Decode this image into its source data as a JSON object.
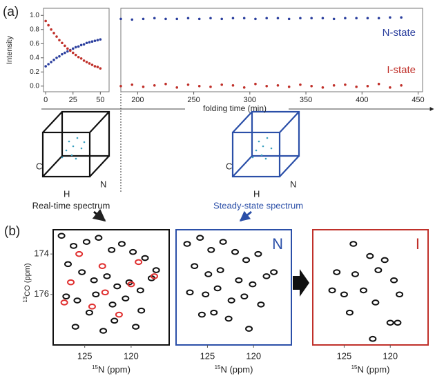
{
  "panel_a": "(a)",
  "panel_b": "(b)",
  "cube_axes": [
    "C",
    "H",
    "N"
  ],
  "captions": [
    "Real-time spectrum",
    "Steady-state spectrum"
  ],
  "spec_ylabel": {
    "sup": "13",
    "text": "CO (ppm)"
  },
  "chart_data": [
    {
      "type": "scatter",
      "ylabel": "Intensity",
      "x": [
        0,
        2.5,
        5,
        7.5,
        10,
        12.5,
        15,
        17.5,
        20,
        22.5,
        25,
        27.5,
        30,
        32.5,
        35,
        37.5,
        40,
        42.5,
        45,
        47.5,
        50
      ],
      "series": [
        {
          "color": "#2b3f9e",
          "values": [
            0.28,
            0.31,
            0.34,
            0.37,
            0.4,
            0.42,
            0.45,
            0.47,
            0.49,
            0.51,
            0.53,
            0.55,
            0.56,
            0.58,
            0.59,
            0.61,
            0.62,
            0.63,
            0.64,
            0.65,
            0.66
          ]
        },
        {
          "color": "#c0302a",
          "values": [
            0.92,
            0.86,
            0.8,
            0.75,
            0.7,
            0.65,
            0.61,
            0.57,
            0.53,
            0.5,
            0.47,
            0.44,
            0.41,
            0.39,
            0.36,
            0.34,
            0.32,
            0.3,
            0.28,
            0.27,
            0.25
          ]
        }
      ],
      "xlim": [
        -2,
        58
      ],
      "xticks": [
        0,
        25,
        50
      ],
      "ylim": [
        -0.08,
        1.1
      ],
      "yticks": [
        {
          "value": 0,
          "label": "0.0"
        },
        {
          "value": 0.2,
          "label": "0.2"
        },
        {
          "value": 0.4,
          "label": "0.4"
        },
        {
          "value": 0.6,
          "label": "0.6"
        },
        {
          "value": 0.8,
          "label": "0.8"
        },
        {
          "value": 1,
          "label": "1.0"
        }
      ]
    },
    {
      "type": "scatter",
      "xlabel": "folding time (min)",
      "annotations": [
        "N-state",
        "I-state"
      ],
      "x": [
        185,
        195,
        205,
        215,
        225,
        235,
        245,
        255,
        265,
        275,
        285,
        295,
        305,
        315,
        325,
        335,
        345,
        355,
        365,
        375,
        385,
        395,
        405,
        415,
        425,
        435
      ],
      "series": [
        {
          "color": "#2b3f9e",
          "values": [
            0.95,
            0.94,
            0.95,
            0.96,
            0.95,
            0.95,
            0.96,
            0.95,
            0.96,
            0.95,
            0.96,
            0.96,
            0.95,
            0.96,
            0.96,
            0.95,
            0.96,
            0.96,
            0.96,
            0.95,
            0.96,
            0.96,
            0.96,
            0.96,
            0.97,
            0.97
          ]
        },
        {
          "color": "#c0302a",
          "values": [
            0.0,
            0.02,
            -0.01,
            0.01,
            0.03,
            -0.02,
            0.02,
            0.0,
            -0.01,
            0.02,
            0.01,
            -0.02,
            0.03,
            0.0,
            0.01,
            -0.01,
            0.02,
            0.0,
            -0.02,
            0.01,
            0.02,
            -0.01,
            0.0,
            0.03,
            -0.02,
            0.01
          ]
        }
      ],
      "xlim": [
        185,
        454
      ],
      "xticks": [
        200,
        250,
        300,
        350,
        400,
        450
      ],
      "ylim": [
        -0.08,
        1.1
      ]
    },
    {
      "type": "spectrum",
      "color": "#111",
      "xlabel": {
        "sup": "15",
        "text": "N (ppm)"
      },
      "series": [
        {
          "color": "#111",
          "x": [
            127.5,
            126.2,
            124.8,
            123.5,
            122.1,
            121.0,
            119.8,
            118.5,
            117.3,
            126.8,
            125.3,
            124.0,
            122.6,
            121.5,
            120.2,
            119.0,
            117.8,
            127.0,
            125.8,
            123.8,
            122.0,
            120.6,
            118.9,
            124.5,
            121.8,
            126.0,
            123.0,
            119.5
          ],
          "y": [
            173.1,
            173.6,
            173.4,
            173.2,
            173.8,
            173.5,
            173.9,
            174.2,
            174.8,
            174.5,
            174.9,
            175.3,
            175.1,
            175.6,
            175.4,
            175.8,
            175.2,
            176.1,
            176.3,
            176.0,
            176.5,
            176.2,
            176.8,
            176.9,
            177.3,
            177.6,
            177.8,
            177.6
          ]
        },
        {
          "color": "#e03030",
          "x": [
            125.6,
            123.1,
            119.2,
            126.5,
            122.8,
            120.0,
            124.2,
            127.2,
            121.3,
            117.5
          ],
          "y": [
            174.0,
            174.6,
            174.4,
            175.4,
            175.9,
            175.5,
            176.6,
            176.4,
            177.0,
            175.1
          ]
        }
      ],
      "xlim": [
        128.4,
        115.9
      ],
      "xticks": [
        125,
        120
      ],
      "ylim": [
        178.5,
        172.8
      ],
      "yticks": [
        174,
        176
      ]
    },
    {
      "type": "spectrum",
      "color": "#2b4fa8",
      "label": "N",
      "xlabel": {
        "sup": "15",
        "text": "N (ppm)"
      },
      "series": [
        {
          "color": "#111",
          "x": [
            127.2,
            125.8,
            124.6,
            123.3,
            122.0,
            120.8,
            119.5,
            126.4,
            124.9,
            123.6,
            121.6,
            120.1,
            118.6,
            126.9,
            125.2,
            123.9,
            122.4,
            121.0,
            119.2,
            124.3,
            122.7,
            125.6,
            120.5,
            117.8
          ],
          "y": [
            173.5,
            173.2,
            173.8,
            173.4,
            173.9,
            174.3,
            174.0,
            174.6,
            175.0,
            174.8,
            175.3,
            175.5,
            175.1,
            175.9,
            176.0,
            175.7,
            176.3,
            176.1,
            176.5,
            176.9,
            177.2,
            177.0,
            177.7,
            174.9
          ]
        }
      ],
      "xlim": [
        128.4,
        115.9
      ],
      "xticks": [
        125,
        120
      ],
      "ylim": [
        178.5,
        172.8
      ]
    },
    {
      "type": "spectrum",
      "color": "#c0302a",
      "label": "I",
      "xlabel": {
        "sup": "15",
        "text": "N (ppm)"
      },
      "series": [
        {
          "color": "#111",
          "x": [
            124.0,
            122.2,
            120.6,
            125.8,
            123.8,
            121.3,
            119.6,
            126.3,
            125.0,
            122.9,
            121.6,
            119.0,
            124.4,
            120.0,
            119.2,
            121.9
          ],
          "y": [
            173.5,
            174.1,
            174.3,
            174.9,
            175.0,
            174.8,
            175.3,
            175.8,
            176.0,
            175.8,
            176.4,
            176.0,
            176.9,
            177.4,
            177.4,
            178.2
          ]
        }
      ],
      "xlim": [
        128.4,
        115.9
      ],
      "xticks": [
        125,
        120
      ],
      "ylim": [
        178.5,
        172.8
      ]
    }
  ]
}
